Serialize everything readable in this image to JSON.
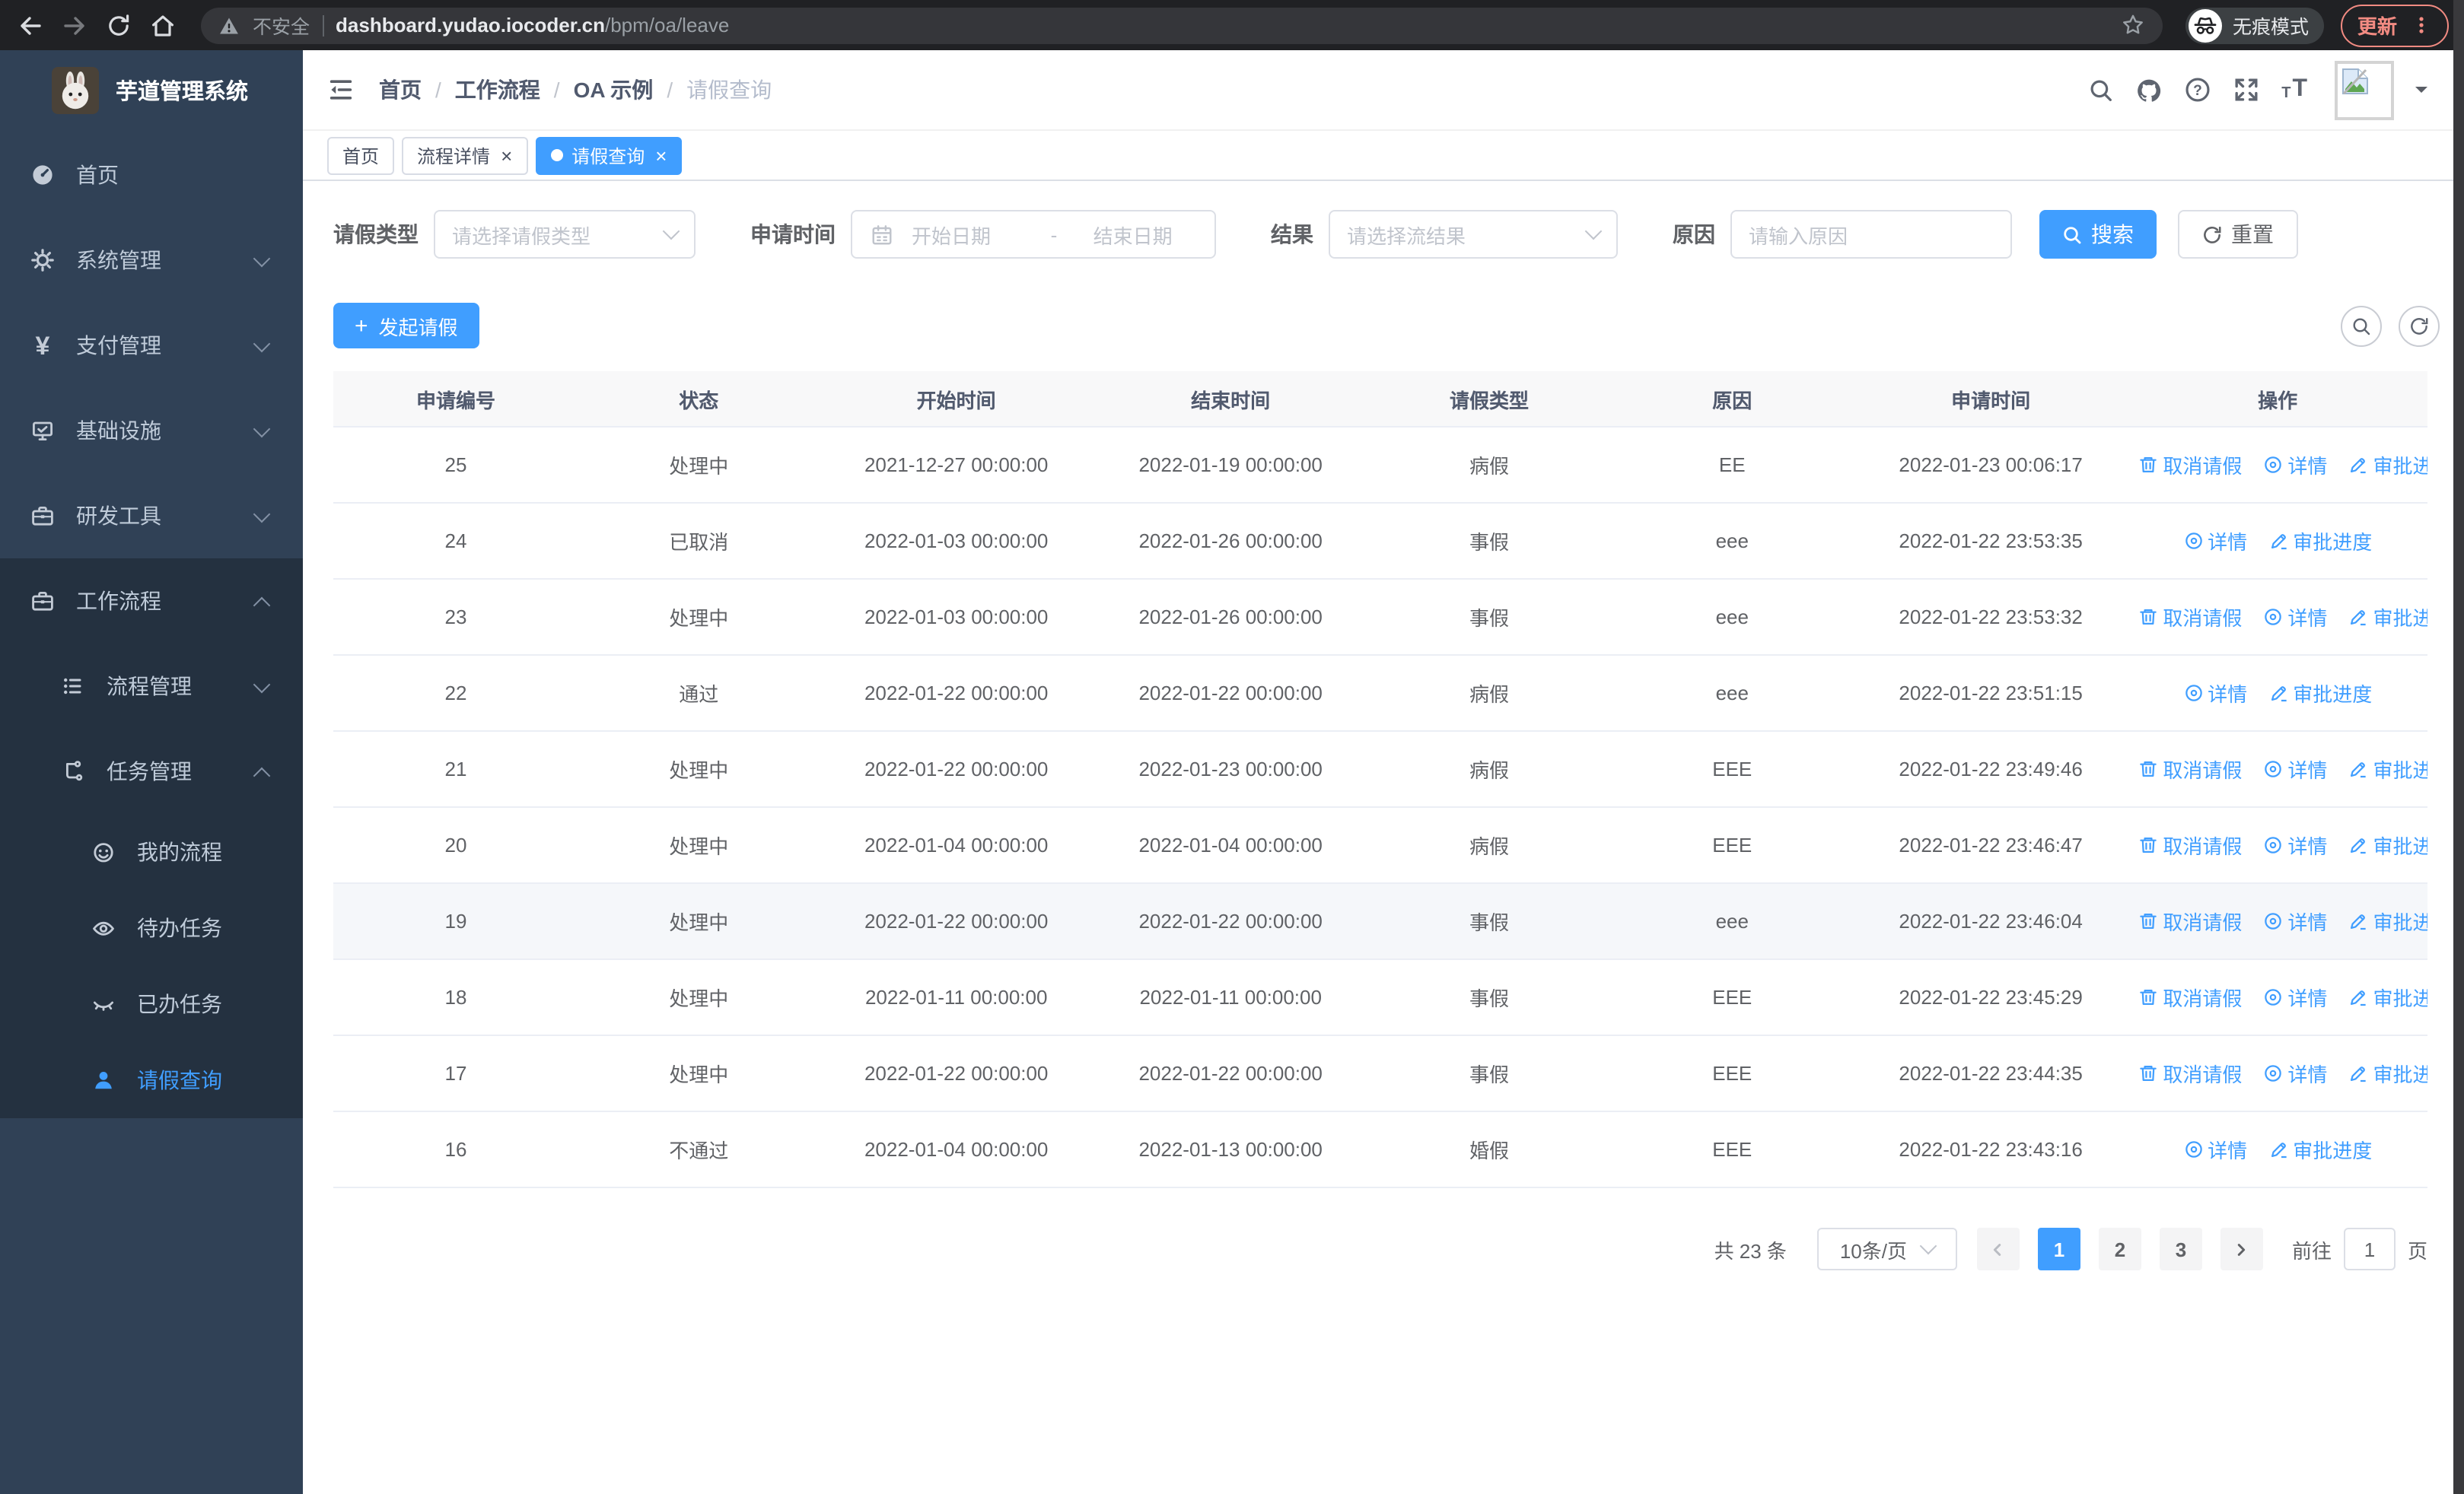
{
  "browser": {
    "security_label": "不安全",
    "url_host": "dashboard.yudao.iocoder.cn",
    "url_path": "/bpm/oa/leave",
    "incognito_label": "无痕模式",
    "update_label": "更新"
  },
  "sidebar": {
    "title": "芋道管理系统",
    "items": [
      {
        "label": "首页"
      },
      {
        "label": "系统管理"
      },
      {
        "label": "支付管理"
      },
      {
        "label": "基础设施"
      },
      {
        "label": "研发工具"
      },
      {
        "label": "工作流程"
      },
      {
        "label": "流程管理"
      },
      {
        "label": "任务管理"
      },
      {
        "label": "我的流程"
      },
      {
        "label": "待办任务"
      },
      {
        "label": "已办任务"
      },
      {
        "label": "请假查询"
      }
    ]
  },
  "header": {
    "breadcrumb": [
      "首页",
      "工作流程",
      "OA 示例",
      "请假查询"
    ],
    "breadcrumb_separator": "/"
  },
  "tabs": [
    {
      "label": "首页"
    },
    {
      "label": "流程详情"
    },
    {
      "label": "请假查询"
    }
  ],
  "ui": {
    "close_glyph": "×"
  },
  "filters": {
    "leave_type_label": "请假类型",
    "leave_type_placeholder": "请选择请假类型",
    "apply_time_label": "申请时间",
    "start_placeholder": "开始日期",
    "range_separator": "-",
    "end_placeholder": "结束日期",
    "result_label": "结果",
    "result_placeholder": "请选择流结果",
    "reason_label": "原因",
    "reason_placeholder": "请输入原因",
    "search_label": "搜索",
    "reset_label": "重置"
  },
  "toolbar": {
    "plus_glyph": "+",
    "create_label": "发起请假"
  },
  "table": {
    "columns": [
      "申请编号",
      "状态",
      "开始时间",
      "结束时间",
      "请假类型",
      "原因",
      "申请时间",
      "操作"
    ],
    "action_labels": {
      "cancel": "取消请假",
      "detail": "详情",
      "progress": "审批进度"
    },
    "rows": [
      {
        "id": "25",
        "status": "处理中",
        "start": "2021-12-27 00:00:00",
        "end": "2022-01-19 00:00:00",
        "type": "病假",
        "reason": "EE",
        "apply": "2022-01-23 00:06:17",
        "actions": [
          "cancel",
          "detail",
          "progress"
        ]
      },
      {
        "id": "24",
        "status": "已取消",
        "start": "2022-01-03 00:00:00",
        "end": "2022-01-26 00:00:00",
        "type": "事假",
        "reason": "eee",
        "apply": "2022-01-22 23:53:35",
        "actions": [
          "detail",
          "progress"
        ]
      },
      {
        "id": "23",
        "status": "处理中",
        "start": "2022-01-03 00:00:00",
        "end": "2022-01-26 00:00:00",
        "type": "事假",
        "reason": "eee",
        "apply": "2022-01-22 23:53:32",
        "actions": [
          "cancel",
          "detail",
          "progress"
        ]
      },
      {
        "id": "22",
        "status": "通过",
        "start": "2022-01-22 00:00:00",
        "end": "2022-01-22 00:00:00",
        "type": "病假",
        "reason": "eee",
        "apply": "2022-01-22 23:51:15",
        "actions": [
          "detail",
          "progress"
        ]
      },
      {
        "id": "21",
        "status": "处理中",
        "start": "2022-01-22 00:00:00",
        "end": "2022-01-23 00:00:00",
        "type": "病假",
        "reason": "EEE",
        "apply": "2022-01-22 23:49:46",
        "actions": [
          "cancel",
          "detail",
          "progress"
        ]
      },
      {
        "id": "20",
        "status": "处理中",
        "start": "2022-01-04 00:00:00",
        "end": "2022-01-04 00:00:00",
        "type": "病假",
        "reason": "EEE",
        "apply": "2022-01-22 23:46:47",
        "actions": [
          "cancel",
          "detail",
          "progress"
        ]
      },
      {
        "id": "19",
        "status": "处理中",
        "start": "2022-01-22 00:00:00",
        "end": "2022-01-22 00:00:00",
        "type": "事假",
        "reason": "eee",
        "apply": "2022-01-22 23:46:04",
        "actions": [
          "cancel",
          "detail",
          "progress"
        ],
        "highlighted": true
      },
      {
        "id": "18",
        "status": "处理中",
        "start": "2022-01-11 00:00:00",
        "end": "2022-01-11 00:00:00",
        "type": "事假",
        "reason": "EEE",
        "apply": "2022-01-22 23:45:29",
        "actions": [
          "cancel",
          "detail",
          "progress"
        ]
      },
      {
        "id": "17",
        "status": "处理中",
        "start": "2022-01-22 00:00:00",
        "end": "2022-01-22 00:00:00",
        "type": "事假",
        "reason": "EEE",
        "apply": "2022-01-22 23:44:35",
        "actions": [
          "cancel",
          "detail",
          "progress"
        ]
      },
      {
        "id": "16",
        "status": "不通过",
        "start": "2022-01-04 00:00:00",
        "end": "2022-01-13 00:00:00",
        "type": "婚假",
        "reason": "EEE",
        "apply": "2022-01-22 23:43:16",
        "actions": [
          "detail",
          "progress"
        ]
      }
    ]
  },
  "pagination": {
    "total_label": "共 23 条",
    "page_size_label": "10条/页",
    "pages": [
      "1",
      "2",
      "3"
    ],
    "active_page": "1",
    "goto_label": "前往",
    "goto_value": "1",
    "goto_suffix": "页"
  },
  "colors": {
    "primary": "#409eff",
    "sidebar_bg": "#304156",
    "sidebar_submenu_bg": "#243140",
    "update_accent": "#f28b82",
    "table_header_bg": "#f8f8f9"
  }
}
